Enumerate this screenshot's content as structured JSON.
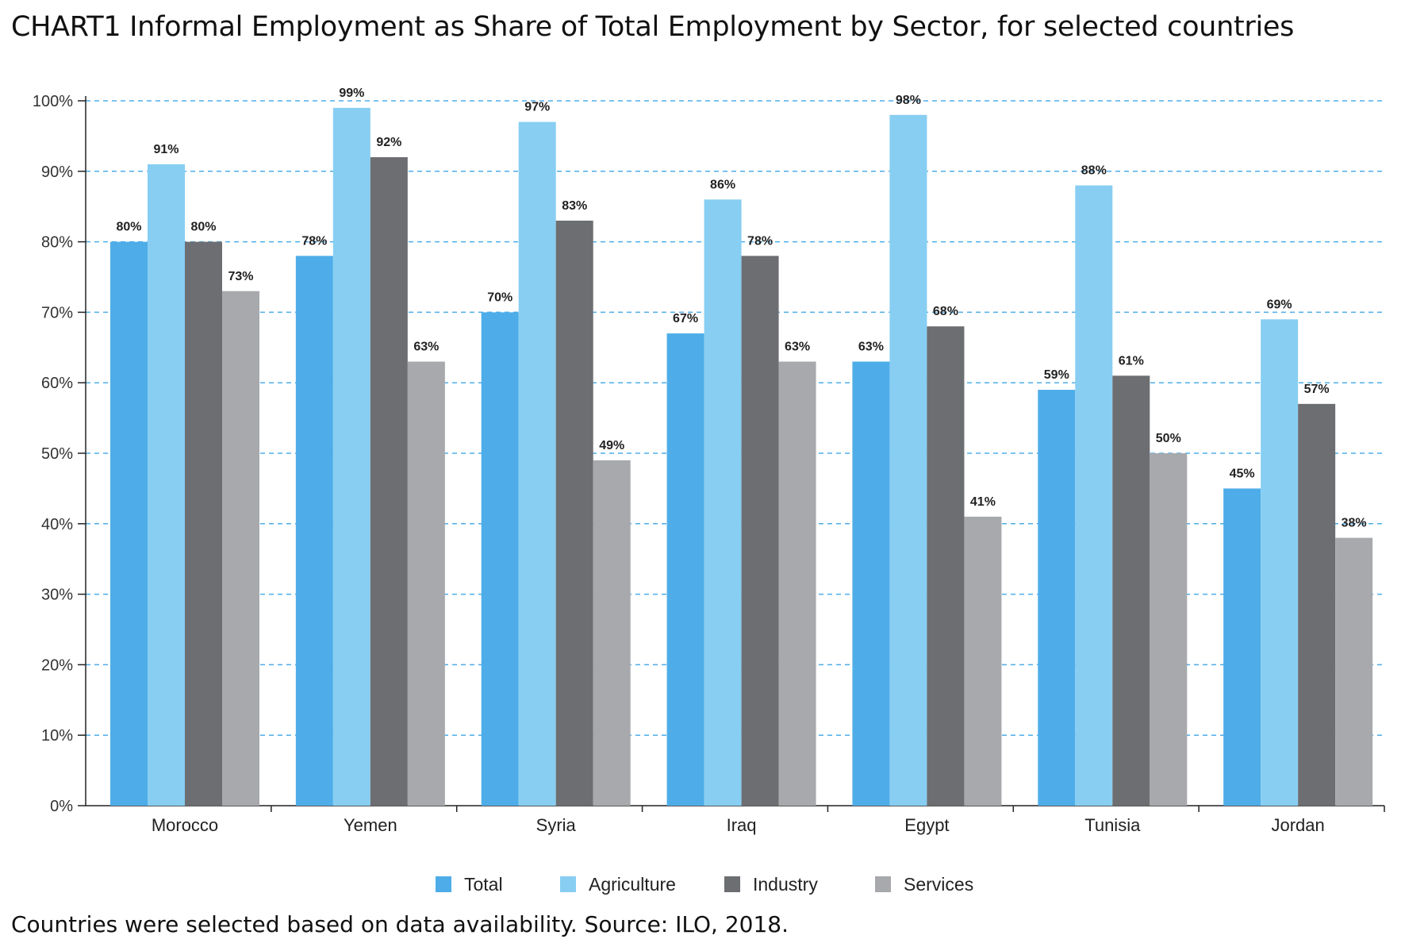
{
  "chart_data": {
    "type": "bar",
    "title": "CHART1 Informal Employment as Share of Total Employment by Sector, for selected countries",
    "note": "Countries were selected based on data availability. Source: ILO, 2018.",
    "categories": [
      "Morocco",
      "Yemen",
      "Syria",
      "Iraq",
      "Egypt",
      "Tunisia",
      "Jordan"
    ],
    "series": [
      {
        "name": "Total",
        "color": "#4EADE8",
        "values": [
          80,
          78,
          70,
          67,
          63,
          59,
          45
        ]
      },
      {
        "name": "Agriculture",
        "color": "#87CEF2",
        "values": [
          91,
          99,
          97,
          86,
          98,
          88,
          69
        ]
      },
      {
        "name": "Industry",
        "color": "#6D6E71",
        "values": [
          80,
          92,
          83,
          78,
          68,
          61,
          57
        ]
      },
      {
        "name": "Services",
        "color": "#A7A9AC",
        "values": [
          73,
          63,
          49,
          63,
          41,
          50,
          38
        ]
      }
    ],
    "ylim": [
      0,
      100
    ],
    "yticks": [
      0,
      10,
      20,
      30,
      40,
      50,
      60,
      70,
      80,
      90,
      100
    ],
    "ytick_suffix": "%",
    "label_suffix": "%",
    "grid": true,
    "grid_color": "#4EADE8",
    "legend_position": "bottom-center",
    "xlabel": "",
    "ylabel": ""
  }
}
